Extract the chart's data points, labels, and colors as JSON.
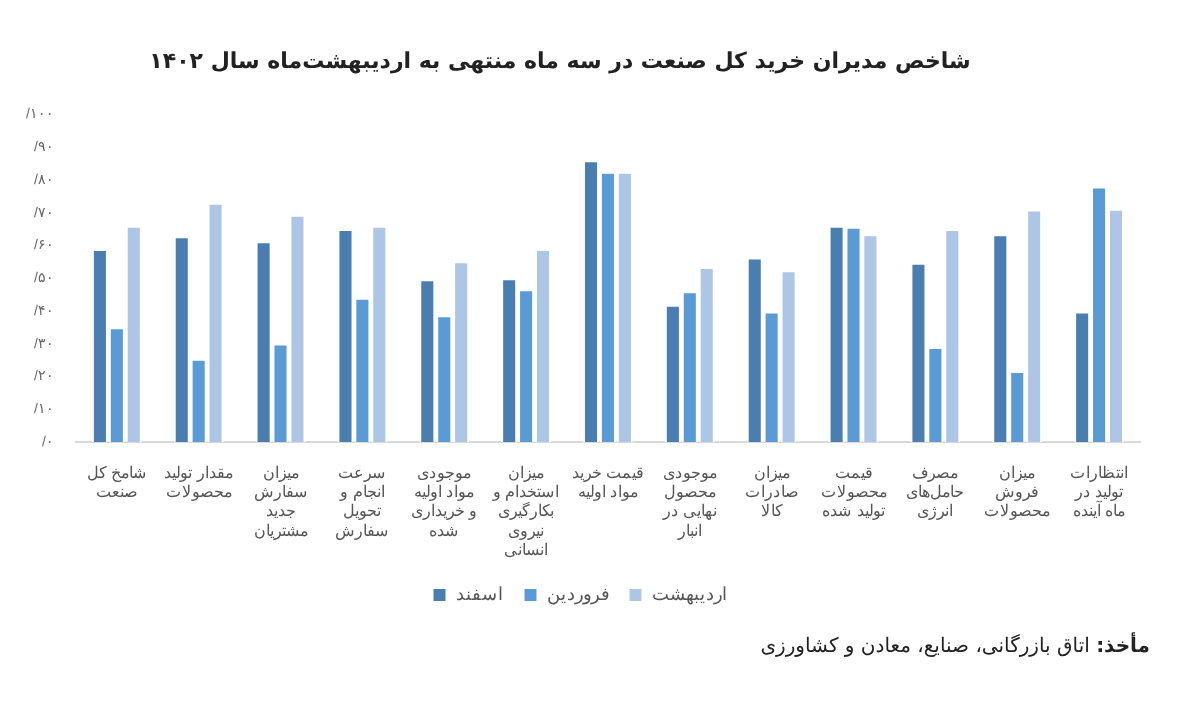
{
  "chart_data": {
    "type": "bar",
    "title": "شاخص مدیران خرید کل صنعت در سه ماه منتهی به اردیبهشت‌ماه سال ۱۴۰۲",
    "categories": [
      "شامخ کل صنعت",
      "مقدار تولید محصولات",
      "میزان سفارش جدید مشتریان",
      "سرعت انجام و تحویل سفارش",
      "موجودی مواد اولیه و خریداری شده",
      "میزان استخدام و بکارگیری نیروی انسانی",
      "قیمت خرید مواد اولیه",
      "موجودی محصول نهایی در انبار",
      "میزان صادرات کالا",
      "قیمت محصولات تولید شده",
      "مصرف حامل‌های انرژی",
      "میزان فروش محصولات",
      "انتظارات تولید در ماه آینده"
    ],
    "series": [
      {
        "name": "اسفند",
        "color": "#4a7eb0",
        "values": [
          58.9,
          62.8,
          61.3,
          65,
          49.7,
          50,
          86,
          41.9,
          56.3,
          66,
          54.7,
          63.4,
          39.8
        ]
      },
      {
        "name": "فروردین",
        "color": "#5b9bd5",
        "values": [
          35,
          25.4,
          30.1,
          44,
          38.7,
          46.6,
          82.5,
          46,
          39.8,
          65.7,
          29,
          21.7,
          78
        ]
      },
      {
        "name": "اردیبهشت",
        "color": "#adc6e6",
        "values": [
          66,
          73,
          69.4,
          66,
          55.2,
          58.9,
          82.5,
          53.4,
          52.4,
          63.4,
          65,
          71,
          71.2
        ]
      }
    ],
    "ylim": [
      0,
      100
    ],
    "yticks": [
      {
        "value": 0,
        "label": "/۰"
      },
      {
        "value": 10,
        "label": "/۱۰"
      },
      {
        "value": 20,
        "label": "/۲۰"
      },
      {
        "value": 30,
        "label": "/۳۰"
      },
      {
        "value": 40,
        "label": "/۴۰"
      },
      {
        "value": 50,
        "label": "/۵۰"
      },
      {
        "value": 60,
        "label": "/۶۰"
      },
      {
        "value": 70,
        "label": "/۷۰"
      },
      {
        "value": 80,
        "label": "/۸۰"
      },
      {
        "value": 90,
        "label": "/۹۰"
      },
      {
        "value": 100,
        "label": "/۱۰۰"
      }
    ],
    "grid": false,
    "legend": "bottom",
    "annotations": [
      "مأخذ: اتاق بازرگانی، صنایع، معادن و کشاورزی"
    ]
  }
}
